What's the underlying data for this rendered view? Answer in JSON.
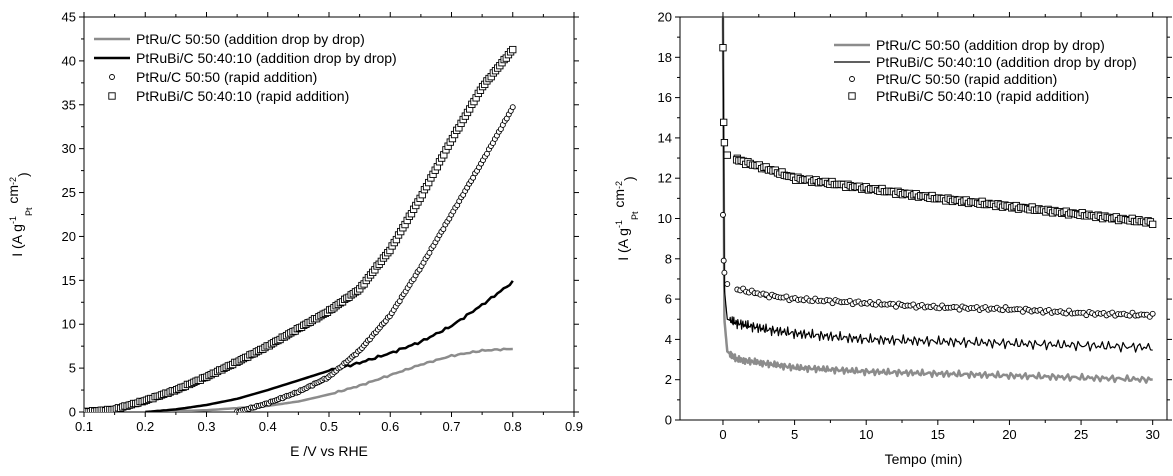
{
  "chart_data": [
    {
      "type": "line",
      "xlabel": "E /V vs RHE",
      "ylabel": {
        "main": "I (A g",
        "sup1": "-1",
        "sub": "Pt",
        "mid": " cm",
        "sup2": "-2",
        "end": ")"
      },
      "xlim": [
        0.1,
        0.9
      ],
      "ylim": [
        0,
        45
      ],
      "xticks": [
        "0.1",
        "0.2",
        "0.3",
        "0.4",
        "0.5",
        "0.6",
        "0.7",
        "0.8",
        "0.9"
      ],
      "yticks": [
        "0",
        "5",
        "10",
        "15",
        "20",
        "25",
        "30",
        "35",
        "40",
        "45"
      ],
      "legend_position": "top-left",
      "series": [
        {
          "name": "PtRu/C 50:50 (addition drop by drop)",
          "style": "line",
          "color": "#8c8c8c",
          "x": [
            0.2,
            0.3,
            0.4,
            0.45,
            0.5,
            0.55,
            0.6,
            0.65,
            0.7,
            0.75,
            0.8
          ],
          "y": [
            0.0,
            0.2,
            0.7,
            1.2,
            2.0,
            3.0,
            4.2,
            5.4,
            6.4,
            7.0,
            7.2
          ]
        },
        {
          "name": "PtRuBi/C 50:40:10 (addition drop by drop)",
          "style": "line",
          "color": "#000000",
          "x": [
            0.2,
            0.25,
            0.3,
            0.35,
            0.4,
            0.45,
            0.5,
            0.55,
            0.6,
            0.65,
            0.7,
            0.75,
            0.8
          ],
          "y": [
            0.0,
            0.3,
            0.8,
            1.5,
            2.5,
            3.6,
            4.7,
            5.6,
            6.7,
            8.0,
            9.8,
            12.2,
            14.8
          ]
        },
        {
          "name": "PtRu/C 50:50 (rapid addition)",
          "style": "circle",
          "color": "#000000",
          "x": [
            0.35,
            0.4,
            0.45,
            0.5,
            0.55,
            0.6,
            0.65,
            0.7,
            0.75,
            0.8
          ],
          "y": [
            0.0,
            1.0,
            2.3,
            4.0,
            7.0,
            11.0,
            16.5,
            22.5,
            28.5,
            34.7
          ]
        },
        {
          "name": "PtRuBi/C 50:40:10 (rapid addition)",
          "style": "square",
          "color": "#000000",
          "x": [
            0.1,
            0.15,
            0.2,
            0.25,
            0.3,
            0.35,
            0.4,
            0.45,
            0.5,
            0.55,
            0.6,
            0.65,
            0.7,
            0.75,
            0.8
          ],
          "y": [
            0.0,
            0.3,
            1.3,
            2.5,
            4.0,
            5.7,
            7.5,
            9.5,
            11.5,
            14.0,
            18.5,
            24.5,
            31.0,
            37.0,
            41.3
          ]
        }
      ]
    },
    {
      "type": "line",
      "xlabel": "Tempo (min)",
      "ylabel": {
        "main": "I (A g",
        "sup1": "-1",
        "sub": "Pt",
        "mid": " cm",
        "sup2": "-2",
        "end": ")"
      },
      "xlim": [
        -3,
        31
      ],
      "ylim": [
        0,
        20
      ],
      "xticks": [
        "0",
        "5",
        "10",
        "15",
        "20",
        "25",
        "30"
      ],
      "yticks": [
        "0",
        "2",
        "4",
        "6",
        "8",
        "10",
        "12",
        "14",
        "16",
        "18",
        "20"
      ],
      "legend_position": "top-right",
      "series": [
        {
          "name": "PtRu/C 50:50 (addition drop by drop)",
          "style": "line",
          "color": "#8c8c8c",
          "x": [
            0,
            0.1,
            0.3,
            1,
            3,
            5,
            10,
            15,
            20,
            25,
            30
          ],
          "y": [
            20,
            5.0,
            3.4,
            3.0,
            2.8,
            2.6,
            2.4,
            2.3,
            2.2,
            2.1,
            2.0
          ]
        },
        {
          "name": "PtRuBi/C 50:40:10 (addition drop by drop)",
          "style": "line",
          "color": "#000000",
          "x": [
            0,
            0.1,
            0.3,
            1,
            3,
            5,
            10,
            15,
            20,
            25,
            30
          ],
          "y": [
            20,
            6.5,
            5.0,
            4.8,
            4.5,
            4.3,
            4.0,
            3.9,
            3.8,
            3.7,
            3.6
          ]
        },
        {
          "name": "PtRu/C 50:50 (rapid addition)",
          "style": "circle",
          "color": "#000000",
          "x": [
            0,
            0.05,
            0.1,
            0.3,
            1,
            3,
            5,
            10,
            15,
            20,
            25,
            30
          ],
          "y": [
            10.1,
            8.0,
            7.3,
            6.7,
            6.5,
            6.2,
            6.0,
            5.8,
            5.6,
            5.5,
            5.3,
            5.2
          ]
        },
        {
          "name": "PtRuBi/C 50:40:10 (rapid addition)",
          "style": "square",
          "color": "#000000",
          "x": [
            0,
            0.05,
            0.1,
            0.3,
            1,
            3,
            5,
            10,
            15,
            20,
            25,
            30
          ],
          "y": [
            18.5,
            14.7,
            13.8,
            13.2,
            12.9,
            12.5,
            12.0,
            11.5,
            11.0,
            10.6,
            10.2,
            9.8
          ]
        }
      ]
    }
  ]
}
